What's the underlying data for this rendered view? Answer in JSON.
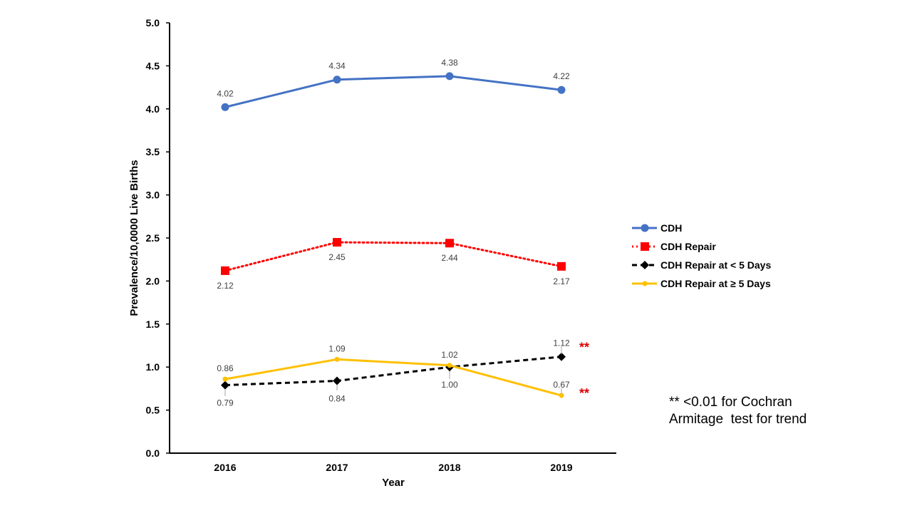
{
  "chart_data": {
    "type": "line",
    "categories": [
      "2016",
      "2017",
      "2018",
      "2019"
    ],
    "xlabel": "Year",
    "ylabel": "Prevalence/10,0000 Live Births",
    "ylim": [
      0,
      5
    ],
    "yticks": [
      "0.0",
      "0.5",
      "1.0",
      "1.5",
      "2.0",
      "2.5",
      "3.0",
      "3.5",
      "4.0",
      "4.5",
      "5.0"
    ],
    "grid": false,
    "legend_position": "right",
    "series": [
      {
        "name": "CDH",
        "values": [
          4.02,
          4.34,
          4.38,
          4.22
        ],
        "labels": [
          "4.02",
          "4.34",
          "4.38",
          "4.22"
        ],
        "color": "#4472c4",
        "line_style": "solid",
        "marker": "circle",
        "label_position": "above"
      },
      {
        "name": "CDH Repair",
        "values": [
          2.12,
          2.45,
          2.44,
          2.17
        ],
        "labels": [
          "2.12",
          "2.45",
          "2.44",
          "2.17"
        ],
        "color": "#ff0000",
        "line_style": "dotted",
        "marker": "square",
        "label_position": "below"
      },
      {
        "name": "CDH Repair at < 5 Days",
        "values": [
          0.79,
          0.84,
          1.0,
          1.12
        ],
        "labels": [
          "0.79",
          "0.84",
          "1.00",
          "1.12"
        ],
        "color": "#000000",
        "line_style": "dashed",
        "marker": "diamond",
        "label_positions": [
          "below",
          "below",
          "below",
          "above"
        ]
      },
      {
        "name": "CDH Repair at ≥ 5 Days",
        "values": [
          0.86,
          1.09,
          1.02,
          0.67
        ],
        "labels": [
          "0.86",
          "1.09",
          "1.02",
          "0.67"
        ],
        "color": "#ffc000",
        "line_style": "solid",
        "marker": "dot",
        "label_positions": [
          "above",
          "above",
          "above",
          "above"
        ]
      }
    ],
    "significance_markers": [
      {
        "series": "CDH Repair at < 5 Days",
        "text": "**"
      },
      {
        "series": "CDH Repair at ≥ 5 Days",
        "text": "**"
      }
    ],
    "footnote": [
      "** <0.01 for Cochran",
      "Armitage  test for trend"
    ]
  }
}
